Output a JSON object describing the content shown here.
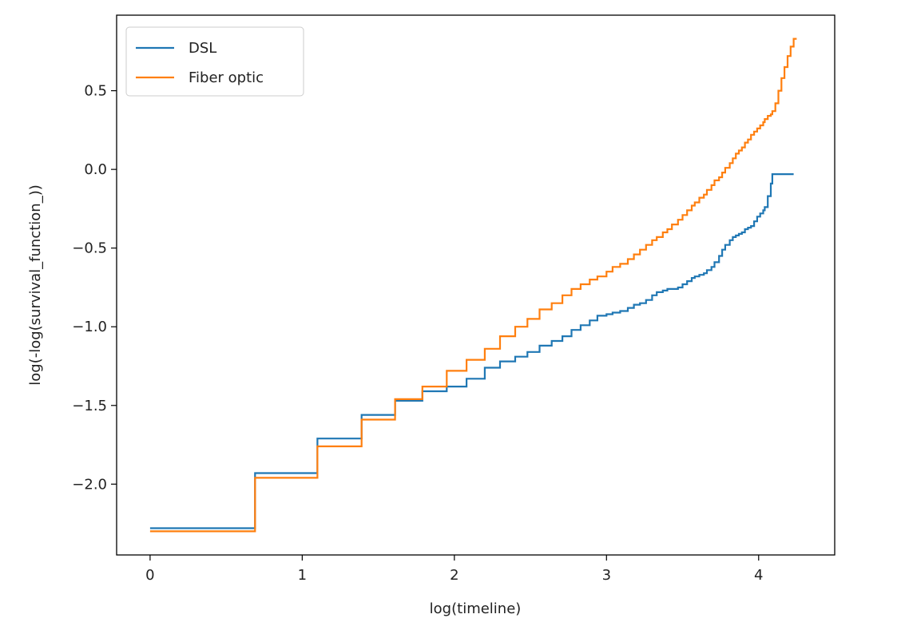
{
  "chart_data": {
    "type": "line",
    "title": "",
    "xlabel": "log(timeline)",
    "ylabel": "log(-log(survival_function_))",
    "xlim": [
      -0.22,
      4.5
    ],
    "ylim": [
      -2.45,
      0.98
    ],
    "xticks": [
      0,
      1,
      2,
      3,
      4
    ],
    "xtick_labels": [
      "0",
      "1",
      "2",
      "3",
      "4"
    ],
    "yticks": [
      -2.0,
      -1.5,
      -1.0,
      -0.5,
      0.0,
      0.5
    ],
    "ytick_labels": [
      "−2.0",
      "−1.5",
      "−1.0",
      "−0.5",
      "0.0",
      "0.5"
    ],
    "grid": false,
    "legend_position": "top-left",
    "step": true,
    "series": [
      {
        "name": "DSL",
        "color": "#1f77b4",
        "x": [
          0.0,
          0.69,
          1.1,
          1.39,
          1.61,
          1.79,
          1.95,
          2.08,
          2.2,
          2.3,
          2.4,
          2.48,
          2.56,
          2.64,
          2.71,
          2.77,
          2.83,
          2.89,
          2.94,
          3.0,
          3.04,
          3.09,
          3.14,
          3.18,
          3.22,
          3.26,
          3.3,
          3.33,
          3.37,
          3.4,
          3.43,
          3.47,
          3.5,
          3.53,
          3.56,
          3.58,
          3.61,
          3.64,
          3.66,
          3.69,
          3.71,
          3.74,
          3.76,
          3.78,
          3.81,
          3.83,
          3.85,
          3.87,
          3.89,
          3.91,
          3.93,
          3.95,
          3.97,
          3.99,
          4.01,
          4.03,
          4.04,
          4.06,
          4.08,
          4.09,
          4.11,
          4.23
        ],
        "y": [
          -2.28,
          -1.93,
          -1.71,
          -1.56,
          -1.47,
          -1.41,
          -1.38,
          -1.33,
          -1.26,
          -1.22,
          -1.19,
          -1.16,
          -1.12,
          -1.09,
          -1.06,
          -1.02,
          -0.99,
          -0.96,
          -0.93,
          -0.92,
          -0.91,
          -0.9,
          -0.88,
          -0.86,
          -0.85,
          -0.83,
          -0.8,
          -0.78,
          -0.77,
          -0.76,
          -0.76,
          -0.75,
          -0.73,
          -0.71,
          -0.69,
          -0.68,
          -0.67,
          -0.66,
          -0.64,
          -0.62,
          -0.59,
          -0.55,
          -0.51,
          -0.48,
          -0.45,
          -0.43,
          -0.42,
          -0.41,
          -0.4,
          -0.38,
          -0.37,
          -0.36,
          -0.33,
          -0.3,
          -0.28,
          -0.26,
          -0.24,
          -0.17,
          -0.09,
          -0.03,
          -0.03,
          -0.03
        ]
      },
      {
        "name": "Fiber optic",
        "color": "#ff7f0e",
        "x": [
          0.0,
          0.69,
          1.1,
          1.39,
          1.61,
          1.79,
          1.95,
          2.08,
          2.2,
          2.3,
          2.4,
          2.48,
          2.56,
          2.64,
          2.71,
          2.77,
          2.83,
          2.89,
          2.94,
          3.0,
          3.04,
          3.09,
          3.14,
          3.18,
          3.22,
          3.26,
          3.3,
          3.33,
          3.37,
          3.4,
          3.43,
          3.47,
          3.5,
          3.53,
          3.56,
          3.58,
          3.61,
          3.64,
          3.66,
          3.69,
          3.71,
          3.74,
          3.76,
          3.78,
          3.81,
          3.83,
          3.85,
          3.87,
          3.89,
          3.91,
          3.93,
          3.95,
          3.97,
          3.99,
          4.01,
          4.03,
          4.04,
          4.06,
          4.08,
          4.09,
          4.11,
          4.13,
          4.15,
          4.17,
          4.19,
          4.21,
          4.23,
          4.25
        ],
        "y": [
          -2.3,
          -1.96,
          -1.76,
          -1.59,
          -1.46,
          -1.38,
          -1.28,
          -1.21,
          -1.14,
          -1.06,
          -1.0,
          -0.95,
          -0.89,
          -0.85,
          -0.8,
          -0.76,
          -0.73,
          -0.7,
          -0.68,
          -0.65,
          -0.62,
          -0.6,
          -0.57,
          -0.54,
          -0.51,
          -0.48,
          -0.45,
          -0.43,
          -0.4,
          -0.38,
          -0.35,
          -0.32,
          -0.29,
          -0.26,
          -0.23,
          -0.21,
          -0.18,
          -0.16,
          -0.13,
          -0.1,
          -0.07,
          -0.05,
          -0.02,
          0.01,
          0.04,
          0.07,
          0.1,
          0.12,
          0.14,
          0.17,
          0.19,
          0.22,
          0.24,
          0.26,
          0.28,
          0.3,
          0.32,
          0.34,
          0.35,
          0.37,
          0.42,
          0.5,
          0.58,
          0.65,
          0.72,
          0.78,
          0.83,
          0.83
        ]
      }
    ]
  }
}
